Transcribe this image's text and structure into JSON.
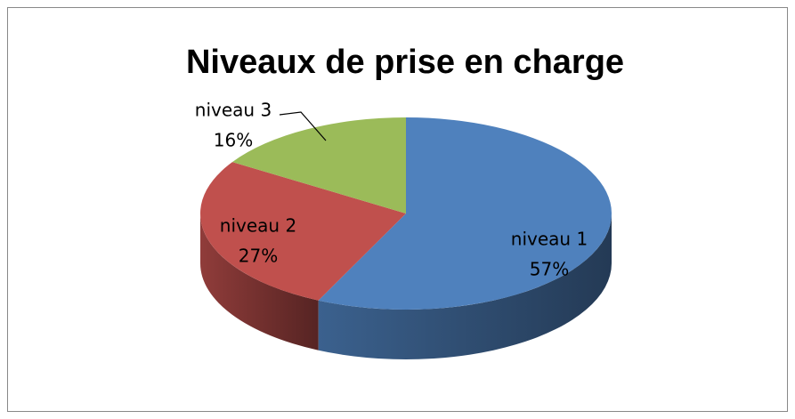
{
  "chart_data": {
    "type": "pie",
    "title": "Niveaux de prise en charge",
    "categories": [
      "niveau 1",
      "niveau 2",
      "niveau 3"
    ],
    "values": [
      57,
      27,
      16
    ],
    "value_labels": [
      "57%",
      "27%",
      "16%"
    ],
    "colors": [
      "#4f81bd",
      "#c0504d",
      "#9bbb59"
    ]
  }
}
